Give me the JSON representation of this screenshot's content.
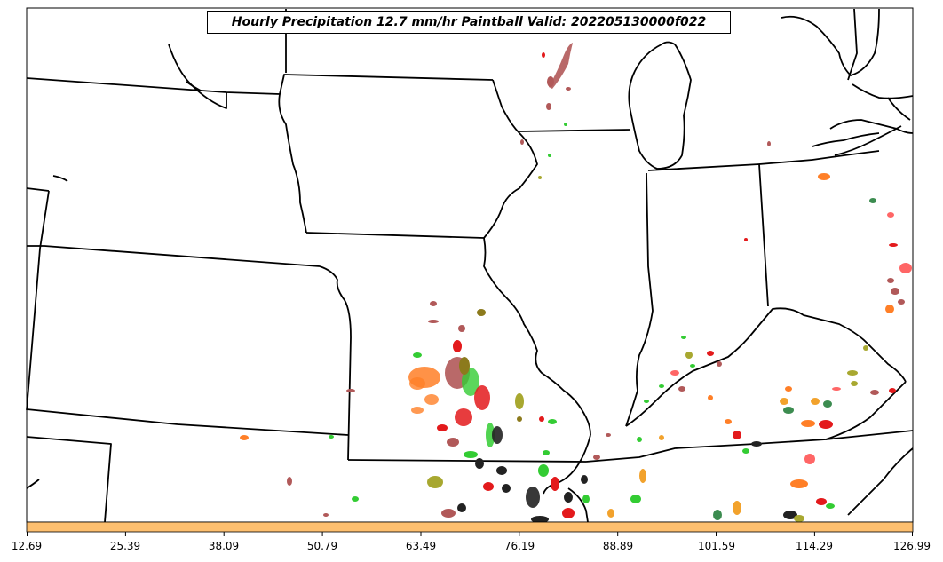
{
  "title": "Hourly Precipitation 12.7 mm/hr Paintball Valid: 202205130000f022",
  "colors": {
    "colorbar": "#fdbf6f",
    "boundaries": "#000000",
    "member_palette": [
      "#e31a1c",
      "#33cc33",
      "#ff7f27",
      "#b15959",
      "#8c7a1c",
      "#222222",
      "#f2a22c",
      "#ff6666",
      "#3c8c50",
      "#a8a830"
    ]
  },
  "colorbar": {
    "tick_labels": [
      "12.69",
      "25.39",
      "38.09",
      "50.79",
      "63.49",
      "76.19",
      "88.89",
      "101.59",
      "114.29",
      "126.99"
    ]
  }
}
